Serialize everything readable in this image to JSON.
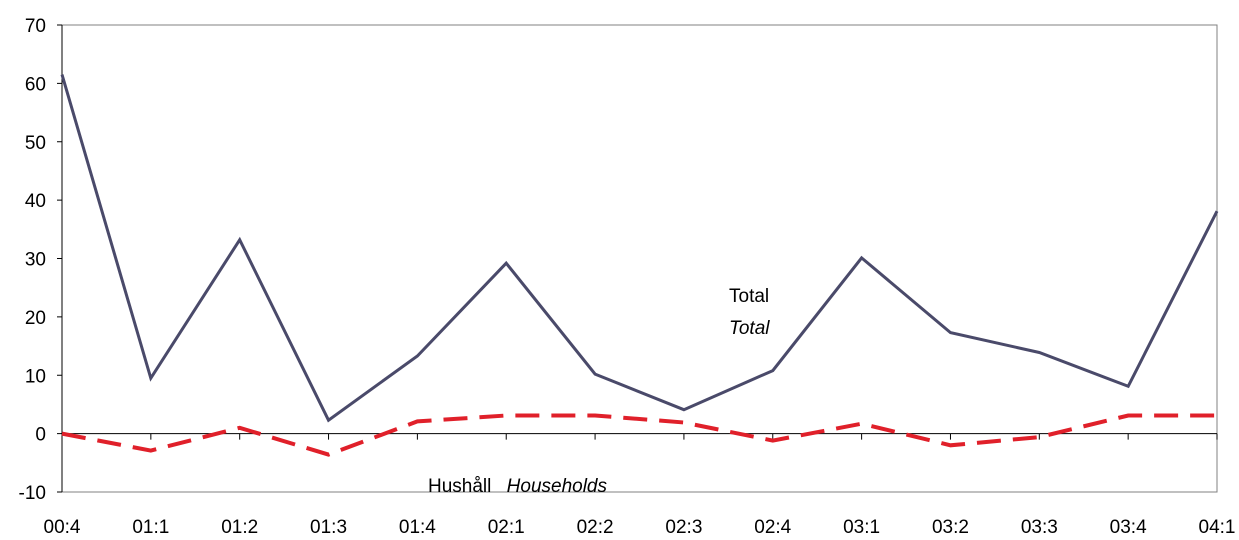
{
  "chart_data": {
    "type": "line",
    "categories": [
      "00:4",
      "01:1",
      "01:2",
      "01:3",
      "01:4",
      "02:1",
      "02:2",
      "02:3",
      "02:4",
      "03:1",
      "03:2",
      "03:3",
      "03:4",
      "04:1"
    ],
    "series": [
      {
        "name": "Total",
        "values": [
          61.5,
          9.5,
          33.2,
          2.3,
          13.3,
          29.2,
          10.2,
          4.1,
          10.8,
          30.1,
          17.3,
          13.9,
          8.1,
          38.1
        ],
        "color": "#4a4a6a",
        "style": "solid"
      },
      {
        "name": "Hushåll",
        "values": [
          0,
          -2.9,
          1,
          -3.6,
          2.1,
          3.1,
          3.1,
          1.9,
          -1.2,
          1.7,
          -2,
          -0.6,
          3.1,
          3.1
        ],
        "color": "#e0202a",
        "style": "dashed"
      }
    ],
    "ylim": [
      -10,
      70
    ],
    "yticks": [
      -10,
      0,
      10,
      20,
      30,
      40,
      50,
      60,
      70
    ],
    "grid": false,
    "legend": "none",
    "annotations": {
      "total_label_sv": "Total",
      "total_label_en": "Total",
      "households_label_sv": "Hushåll",
      "households_label_en": "Households"
    }
  }
}
